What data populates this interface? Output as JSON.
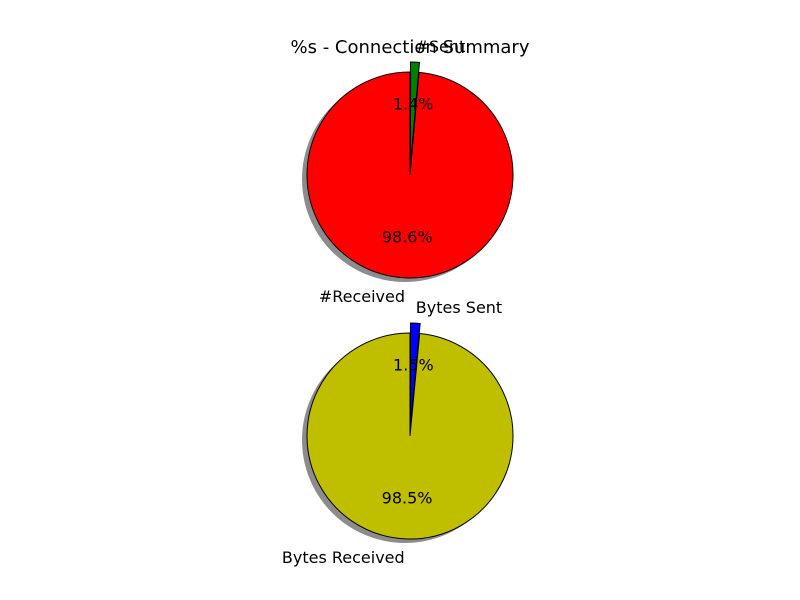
{
  "chart_data": [
    {
      "type": "pie",
      "title": "%s - Connection Summary",
      "categories": [
        "#Sent",
        "#Received"
      ],
      "values": [
        1.4,
        98.6
      ],
      "percent_labels": [
        "1.4%",
        "98.6%"
      ],
      "colors": [
        "#008000",
        "#ff0000"
      ],
      "explode": [
        true,
        false
      ],
      "shadow": true
    },
    {
      "type": "pie",
      "title": "",
      "categories": [
        "Bytes Sent",
        "Bytes Received"
      ],
      "values": [
        1.5,
        98.5
      ],
      "percent_labels": [
        "1.5%",
        "98.5%"
      ],
      "colors": [
        "#0000ff",
        "#bfbf00"
      ],
      "explode": [
        true,
        false
      ],
      "shadow": true
    }
  ]
}
